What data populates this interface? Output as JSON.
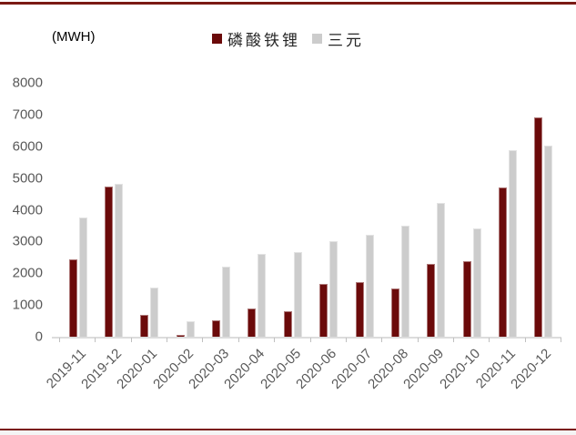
{
  "unit_label": "(MWH)",
  "frame": {
    "rule_color": "#7a1a14"
  },
  "axis": {
    "text_color": "#595959"
  },
  "legend": {
    "items": [
      {
        "label": "磷酸铁锂",
        "color": "#6b0a0a"
      },
      {
        "label": "三元",
        "color": "#cccccc"
      }
    ]
  },
  "chart_data": {
    "type": "bar",
    "title": "",
    "xlabel": "",
    "ylabel": "(MWH)",
    "unit": "MWH",
    "categories": [
      "2019-11",
      "2019-12",
      "2020-01",
      "2020-02",
      "2020-03",
      "2020-04",
      "2020-05",
      "2020-06",
      "2020-07",
      "2020-08",
      "2020-09",
      "2020-10",
      "2020-11",
      "2020-12"
    ],
    "series": [
      {
        "name": "磷酸铁锂",
        "color": "#6b0a0a",
        "values": [
          2440,
          4740,
          700,
          60,
          520,
          900,
          800,
          1650,
          1710,
          1530,
          2300,
          2380,
          4710,
          6920
        ]
      },
      {
        "name": "三元",
        "color": "#cccccc",
        "values": [
          3750,
          4820,
          1550,
          490,
          2200,
          2610,
          2680,
          3000,
          3220,
          3490,
          4220,
          3400,
          5870,
          6030
        ]
      }
    ],
    "ylim": [
      0,
      8000
    ],
    "y_ticks": [
      0,
      1000,
      2000,
      3000,
      4000,
      5000,
      6000,
      7000,
      8000
    ],
    "x_tick_rotation_deg": 45,
    "grid": false,
    "legend_position": "top-center"
  }
}
